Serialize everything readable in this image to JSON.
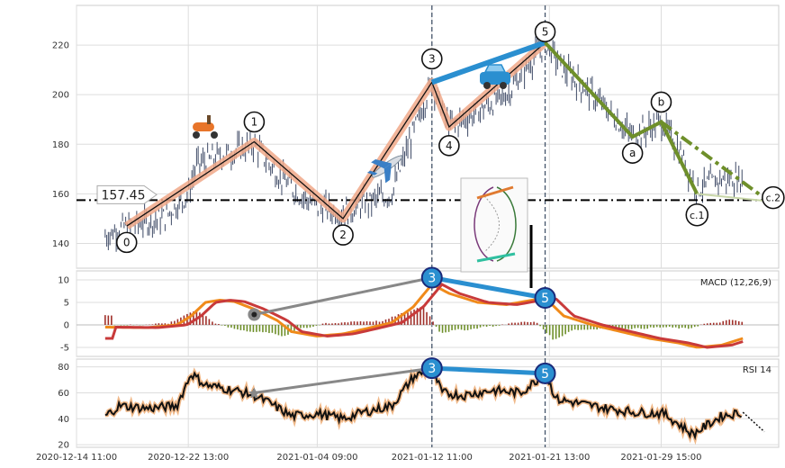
{
  "chart_data": [
    {
      "panel": "price",
      "type": "candlestick",
      "y_ticks": [
        140,
        160,
        180,
        200,
        220
      ],
      "ylim": [
        130,
        236
      ],
      "grid": true,
      "price_level": {
        "label": "157.45",
        "value": 157.45
      },
      "wave_labels": [
        {
          "text": "0",
          "x": 3.5,
          "y": 147
        },
        {
          "text": "1",
          "x": 12.4,
          "y": 181
        },
        {
          "text": "2",
          "x": 18.6,
          "y": 150
        },
        {
          "text": "3",
          "x": 24.8,
          "y": 205
        },
        {
          "text": "4",
          "x": 26.0,
          "y": 187
        },
        {
          "text": "5",
          "x": 32.7,
          "y": 221
        },
        {
          "text": "a",
          "x": 38.8,
          "y": 183
        },
        {
          "text": "b",
          "x": 40.8,
          "y": 189
        },
        {
          "text": "c.1",
          "x": 43.3,
          "y": 160
        },
        {
          "text": "c.2",
          "x": 48.3,
          "y": 157
        }
      ],
      "impulse_path": [
        [
          3.5,
          147
        ],
        [
          12.4,
          181
        ],
        [
          18.6,
          150
        ],
        [
          24.8,
          205
        ],
        [
          26.0,
          187
        ],
        [
          32.7,
          221
        ]
      ],
      "correction_path": [
        [
          32.7,
          221
        ],
        [
          38.8,
          183
        ],
        [
          40.8,
          189
        ],
        [
          43.3,
          160
        ]
      ],
      "projection_path": [
        [
          40.8,
          189
        ],
        [
          48.3,
          157
        ]
      ],
      "wave_3_5_link": [
        [
          24.8,
          205
        ],
        [
          32.7,
          221
        ]
      ],
      "icons": [
        "scooter-icon",
        "airplane-icon",
        "car-icon"
      ]
    },
    {
      "panel": "macd",
      "type": "line",
      "title": "MACD (12,26,9)",
      "y_ticks": [
        -5,
        0,
        5,
        10
      ],
      "ylim": [
        -7,
        12
      ],
      "points": [
        {
          "label": "3",
          "x": 24.8,
          "y": 10.5
        },
        {
          "label": "5",
          "x": 32.7,
          "y": 6
        }
      ],
      "divergence_start": {
        "x": 12.4,
        "y": 2.3
      }
    },
    {
      "panel": "rsi",
      "type": "line",
      "title": "RSI 14",
      "y_ticks": [
        20,
        40,
        60,
        80
      ],
      "ylim": [
        18,
        86
      ],
      "points": [
        {
          "label": "3",
          "x": 24.8,
          "y": 79
        },
        {
          "label": "5",
          "x": 32.7,
          "y": 75
        }
      ],
      "divergence_start": {
        "x": 12.4,
        "y": 60
      }
    }
  ],
  "x_axis": {
    "ticks": [
      {
        "label": "2020-12-14 11:00",
        "x": 0
      },
      {
        "label": "2020-12-22 13:00",
        "x": 7.8
      },
      {
        "label": "2021-01-04 09:00",
        "x": 16.8
      },
      {
        "label": "2021-01-12 11:00",
        "x": 24.8
      },
      {
        "label": "2021-01-21 13:00",
        "x": 33.0
      },
      {
        "label": "2021-01-29 15:00",
        "x": 40.8
      }
    ],
    "xlim": [
      0,
      49
    ],
    "vertical_markers": [
      24.8,
      32.7
    ]
  }
}
